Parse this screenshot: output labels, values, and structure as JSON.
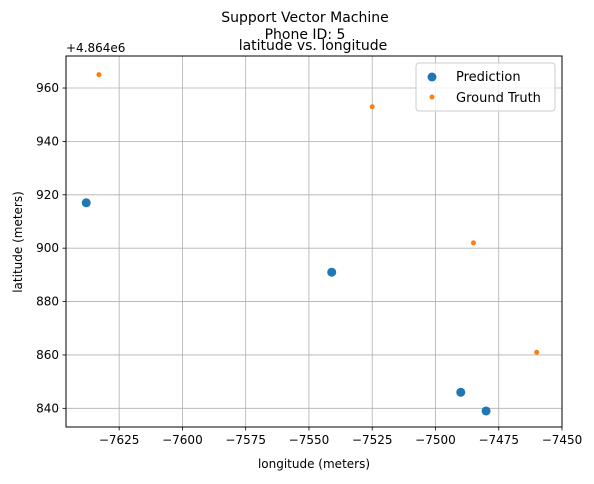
{
  "chart_data": {
    "type": "scatter",
    "title_lines": [
      "Support Vector Machine",
      "Phone ID: 5"
    ],
    "subtitle": "latitude vs. longitude",
    "xlabel": "longitude (meters)",
    "ylabel": "latitude (meters)",
    "y_offset_label": "+4.864e6",
    "xlim": [
      -7646,
      -7450
    ],
    "ylim": [
      833,
      972
    ],
    "x_ticks": [
      {
        "value": -7625,
        "label": "−7625"
      },
      {
        "value": -7600,
        "label": "−7600"
      },
      {
        "value": -7575,
        "label": "−7575"
      },
      {
        "value": -7550,
        "label": "−7550"
      },
      {
        "value": -7525,
        "label": "−7525"
      },
      {
        "value": -7500,
        "label": "−7500"
      },
      {
        "value": -7475,
        "label": "−7475"
      },
      {
        "value": -7450,
        "label": "−7450"
      }
    ],
    "y_ticks": [
      {
        "value": 840,
        "label": "840"
      },
      {
        "value": 860,
        "label": "860"
      },
      {
        "value": 880,
        "label": "880"
      },
      {
        "value": 900,
        "label": "900"
      },
      {
        "value": 920,
        "label": "920"
      },
      {
        "value": 940,
        "label": "940"
      },
      {
        "value": 960,
        "label": "960"
      }
    ],
    "grid": true,
    "legend_position": "top-right",
    "series": [
      {
        "name": "Prediction",
        "color": "#1f77b4",
        "marker": "large-dot",
        "points": [
          {
            "x": -7638,
            "y": 917
          },
          {
            "x": -7541,
            "y": 891
          },
          {
            "x": -7490,
            "y": 846
          },
          {
            "x": -7480,
            "y": 839
          }
        ]
      },
      {
        "name": "Ground Truth",
        "color": "#ff7f0e",
        "marker": "small-dot",
        "points": [
          {
            "x": -7633,
            "y": 965
          },
          {
            "x": -7525,
            "y": 953
          },
          {
            "x": -7485,
            "y": 902
          },
          {
            "x": -7460,
            "y": 861
          }
        ]
      }
    ]
  }
}
